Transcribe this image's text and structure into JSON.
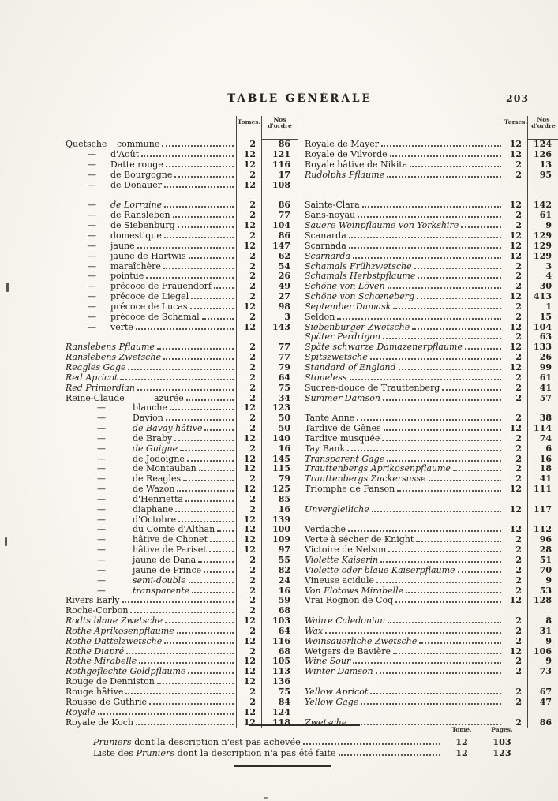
{
  "page": {
    "title": "TABLE GÉNÉRALE",
    "page_number": "203"
  },
  "table": {
    "header": {
      "tomes": "Tomes.",
      "nos_line1": "Nos",
      "nos_line2": "d'ordre"
    },
    "slots": [
      {
        "l": {
          "h": "Quetsche",
          "n": "commune",
          "t": "2",
          "o": "86"
        },
        "r": {
          "n": "Royale de Mayer",
          "t": "12",
          "o": "124"
        }
      },
      {
        "l": {
          "d": 1,
          "n": "d'Août",
          "t": "12",
          "o": "121"
        },
        "r": {
          "n": "Royale de Vilvorde",
          "t": "12",
          "o": "126"
        }
      },
      {
        "l": {
          "d": 1,
          "n": "Datte rouge",
          "t": "12",
          "o": "116"
        },
        "r": {
          "n": "Royale hâtive de Nikita",
          "t": "2",
          "o": "13"
        }
      },
      {
        "l": {
          "d": 1,
          "n": "de Bourgogne",
          "t": "2",
          "o": "17"
        },
        "r": {
          "n": "Rudolphs Pflaume",
          "it": true,
          "t": "2",
          "o": "95"
        }
      },
      {
        "l": {
          "d": 1,
          "n": "de Donauer",
          "t": "12",
          "o": "108"
        },
        "r": null
      },
      {
        "l": null,
        "r": null
      },
      {
        "l": {
          "d": 1,
          "n": "de Lorraine",
          "it": true,
          "t": "2",
          "o": "86"
        },
        "r": {
          "n": "Sainte-Clara",
          "t": "12",
          "o": "142"
        }
      },
      {
        "l": {
          "d": 1,
          "n": "de Ransleben",
          "t": "2",
          "o": "77"
        },
        "r": {
          "n": "Sans-noyau",
          "t": "2",
          "o": "61"
        }
      },
      {
        "l": {
          "d": 1,
          "n": "de Siebenburg",
          "t": "12",
          "o": "104"
        },
        "r": {
          "n": "Sauere Weinpflaume von Yorkshire",
          "it": true,
          "t": "2",
          "o": "9"
        }
      },
      {
        "l": {
          "d": 1,
          "n": "domestique",
          "t": "2",
          "o": "86"
        },
        "r": {
          "n": "Scanarda",
          "t": "12",
          "o": "129"
        }
      },
      {
        "l": {
          "d": 1,
          "n": "jaune",
          "t": "12",
          "o": "147"
        },
        "r": {
          "n": "Scarnada",
          "t": "12",
          "o": "129"
        }
      },
      {
        "l": {
          "d": 1,
          "n": "jaune de Hartwis",
          "t": "2",
          "o": "62"
        },
        "r": {
          "n": "Scarnarda",
          "it": true,
          "t": "12",
          "o": "129"
        }
      },
      {
        "l": {
          "d": 1,
          "n": "maraîchère",
          "t": "2",
          "o": "54"
        },
        "r": {
          "n": "Schamals Frühzwetsche",
          "it": true,
          "t": "2",
          "o": "3"
        }
      },
      {
        "l": {
          "d": 1,
          "n": "pointue",
          "t": "2",
          "o": "26"
        },
        "r": {
          "n": "Schamals Herbstpflaume",
          "it": true,
          "t": "2",
          "o": "4"
        }
      },
      {
        "l": {
          "d": 1,
          "n": "précoce de Frauendorf",
          "t": "2",
          "o": "49"
        },
        "r": {
          "n": "Schöne von Löven",
          "it": true,
          "t": "2",
          "o": "30"
        }
      },
      {
        "l": {
          "d": 1,
          "n": "précoce de Liegel",
          "t": "2",
          "o": "27"
        },
        "r": {
          "n": "Schöne von Schœneberg",
          "it": true,
          "t": "12",
          "o": "413"
        }
      },
      {
        "l": {
          "d": 1,
          "n": "précoce de Lucas",
          "t": "12",
          "o": "98"
        },
        "r": {
          "n": "September Damask",
          "it": true,
          "t": "2",
          "o": "1"
        }
      },
      {
        "l": {
          "d": 1,
          "n": "précoce de Schamal",
          "t": "2",
          "o": "3"
        },
        "r": {
          "n": "Seldon",
          "t": "2",
          "o": "15"
        }
      },
      {
        "l": {
          "d": 1,
          "n": "verte",
          "t": "12",
          "o": "143"
        },
        "r": {
          "n": "Siebenburger Zwetsche",
          "it": true,
          "t": "12",
          "o": "104"
        }
      },
      {
        "l": null,
        "r": {
          "n": "Später Perdrigon",
          "it": true,
          "t": "2",
          "o": "63"
        }
      },
      {
        "l": {
          "n": "Ranslebens Pflaume",
          "it": true,
          "t": "2",
          "o": "77"
        },
        "r": {
          "n": "Späte schwarze Damazenerpflaume",
          "it": true,
          "t": "12",
          "o": "133"
        }
      },
      {
        "l": {
          "n": "Ranslebens Zwetsche",
          "it": true,
          "t": "2",
          "o": "77"
        },
        "r": {
          "n": "Spitszwetsche",
          "it": true,
          "t": "2",
          "o": "26"
        }
      },
      {
        "l": {
          "n": "Reagles Gage",
          "it": true,
          "t": "2",
          "o": "79"
        },
        "r": {
          "n": "Standard of England",
          "it": true,
          "t": "12",
          "o": "99"
        }
      },
      {
        "l": {
          "n": "Red Apricot",
          "it": true,
          "t": "2",
          "o": "64"
        },
        "r": {
          "n": "Stoneless",
          "it": true,
          "t": "2",
          "o": "61"
        }
      },
      {
        "l": {
          "n": "Red Primordian",
          "it": true,
          "t": "2",
          "o": "75"
        },
        "r": {
          "n": "Sucrée-douce de Trauttenberg",
          "t": "2",
          "o": "41"
        }
      },
      {
        "l": {
          "h": "Reine-Claude",
          "n": "azurée",
          "t": "2",
          "o": "34"
        },
        "r": {
          "n": "Summer Damson",
          "it": true,
          "t": "2",
          "o": "57"
        }
      },
      {
        "l": {
          "d": 2,
          "n": "blanche",
          "t": "12",
          "o": "123"
        },
        "r": null
      },
      {
        "l": {
          "d": 2,
          "n": "Davion",
          "t": "2",
          "o": "50"
        },
        "r": {
          "n": "Tante Anne",
          "t": "2",
          "o": "38"
        }
      },
      {
        "l": {
          "d": 2,
          "n": "de Bavay hâtive",
          "it": true,
          "t": "2",
          "o": "50"
        },
        "r": {
          "n": "Tardive de Gênes",
          "t": "12",
          "o": "114"
        }
      },
      {
        "l": {
          "d": 2,
          "n": "de Braby",
          "t": "12",
          "o": "140"
        },
        "r": {
          "n": "Tardive musquée",
          "t": "2",
          "o": "74"
        }
      },
      {
        "l": {
          "d": 2,
          "n": "de Guigne",
          "it": true,
          "t": "2",
          "o": "16"
        },
        "r": {
          "n": "Tay Bank",
          "t": "2",
          "o": "6"
        }
      },
      {
        "l": {
          "d": 2,
          "n": "de Jodoigne",
          "t": "12",
          "o": "145"
        },
        "r": {
          "n": "Transparent Gage",
          "it": true,
          "t": "2",
          "o": "16"
        }
      },
      {
        "l": {
          "d": 2,
          "n": "de Montauban",
          "t": "12",
          "o": "115"
        },
        "r": {
          "n": "Trauttenbergs Aprikosenpflaume",
          "it": true,
          "t": "2",
          "o": "18"
        }
      },
      {
        "l": {
          "d": 2,
          "n": "de Reagles",
          "t": "2",
          "o": "79"
        },
        "r": {
          "n": "Trauttenbergs Zuckersusse",
          "it": true,
          "t": "2",
          "o": "41"
        }
      },
      {
        "l": {
          "d": 2,
          "n": "de Wazon",
          "t": "12",
          "o": "125"
        },
        "r": {
          "n": "Triomphe de Fanson",
          "t": "12",
          "o": "111"
        }
      },
      {
        "l": {
          "d": 2,
          "n": "d'Henrietta",
          "t": "2",
          "o": "85"
        },
        "r": null
      },
      {
        "l": {
          "d": 2,
          "n": "diaphane",
          "t": "2",
          "o": "16"
        },
        "r": {
          "n": "Unvergleiliche",
          "it": true,
          "t": "12",
          "o": "117"
        }
      },
      {
        "l": {
          "d": 2,
          "n": "d'Octobre",
          "t": "12",
          "o": "139"
        },
        "r": null
      },
      {
        "l": {
          "d": 2,
          "n": "du Comte d'Althan",
          "t": "12",
          "o": "100"
        },
        "r": {
          "n": "Verdache",
          "t": "12",
          "o": "112"
        }
      },
      {
        "l": {
          "d": 2,
          "n": "hâtive de Chonet",
          "t": "12",
          "o": "109"
        },
        "r": {
          "n": "Verte à sécher de Knight",
          "t": "2",
          "o": "96"
        }
      },
      {
        "l": {
          "d": 2,
          "n": "hâtive de Pariset",
          "t": "12",
          "o": "97"
        },
        "r": {
          "n": "Victoire de Nelson",
          "t": "2",
          "o": "28"
        }
      },
      {
        "l": {
          "d": 2,
          "n": "jaune de Dana",
          "t": "2",
          "o": "55"
        },
        "r": {
          "n": "Violette Kaiserin",
          "it": true,
          "t": "2",
          "o": "51"
        }
      },
      {
        "l": {
          "d": 2,
          "n": "jaune de Prince",
          "t": "2",
          "o": "82"
        },
        "r": {
          "n": "Violette oder blaue Kaiserpflaume",
          "it": true,
          "t": "2",
          "o": "70"
        }
      },
      {
        "l": {
          "d": 2,
          "n": "semi-double",
          "it": true,
          "t": "2",
          "o": "24"
        },
        "r": {
          "n": "Vineuse acidule",
          "t": "2",
          "o": "9"
        }
      },
      {
        "l": {
          "d": 2,
          "n": "transparente",
          "it": true,
          "t": "2",
          "o": "16"
        },
        "r": {
          "n": "Von Flotows Mirabelle",
          "it": true,
          "t": "2",
          "o": "53"
        }
      },
      {
        "l": {
          "n": "Rivers Early",
          "t": "2",
          "o": "59"
        },
        "r": {
          "n": "Vrai Rognon de Coq",
          "t": "12",
          "o": "128"
        }
      },
      {
        "l": {
          "n": "Roche-Corbon",
          "t": "2",
          "o": "68"
        },
        "r": null
      },
      {
        "l": {
          "n": "Rodts blaue Zwetsche",
          "it": true,
          "t": "12",
          "o": "103"
        },
        "r": {
          "n": "Wahre Caledonian",
          "it": true,
          "t": "2",
          "o": "8"
        }
      },
      {
        "l": {
          "n": "Rothe Aprikosenpflaume",
          "it": true,
          "t": "2",
          "o": "64"
        },
        "r": {
          "n": "Wax",
          "it": true,
          "t": "2",
          "o": "31"
        }
      },
      {
        "l": {
          "n": "Rothe Dattelzwetsche",
          "it": true,
          "t": "12",
          "o": "116"
        },
        "r": {
          "n": "Weinsauerliche Zwetsche",
          "it": true,
          "t": "2",
          "o": "9"
        }
      },
      {
        "l": {
          "n": "Rothe Diapré",
          "it": true,
          "t": "2",
          "o": "68"
        },
        "r": {
          "n": "Wetgers de Bavière",
          "t": "12",
          "o": "106"
        }
      },
      {
        "l": {
          "n": "Rothe Mirabelle",
          "it": true,
          "t": "12",
          "o": "105"
        },
        "r": {
          "n": "Wine Sour",
          "it": true,
          "t": "2",
          "o": "9"
        }
      },
      {
        "l": {
          "n": "Rothgeflechte Goldpflaume",
          "it": true,
          "t": "12",
          "o": "113"
        },
        "r": {
          "n": "Winter Damson",
          "it": true,
          "t": "2",
          "o": "73"
        }
      },
      {
        "l": {
          "n": "Rouge de Denniston",
          "t": "12",
          "o": "136"
        },
        "r": null
      },
      {
        "l": {
          "n": "Rouge hâtive",
          "t": "2",
          "o": "75"
        },
        "r": {
          "n": "Yellow Apricot",
          "it": true,
          "t": "2",
          "o": "67"
        }
      },
      {
        "l": {
          "n": "Rousse de Guthrie",
          "t": "2",
          "o": "84"
        },
        "r": {
          "n": "Yellow Gage",
          "it": true,
          "t": "2",
          "o": "47"
        }
      },
      {
        "l": {
          "n": "Royale",
          "it": true,
          "t": "12",
          "o": "124"
        },
        "r": null
      },
      {
        "l": {
          "n": "Royale de Koch",
          "t": "12",
          "o": "118"
        },
        "r": {
          "n": "Zwetsche",
          "it": true,
          "t": "2",
          "o": "86"
        }
      }
    ]
  },
  "footer": {
    "col_tome": "Tome.",
    "col_pages": "Pages.",
    "rows": [
      {
        "pre": "",
        "it": "Pruniers",
        "post": " dont la description n'est pas achevée",
        "tome": "12",
        "page": "103"
      },
      {
        "pre": "Liste des ",
        "it": "Pruniers",
        "post": " dont la description n'a pas été faite",
        "tome": "12",
        "page": "123"
      }
    ]
  }
}
